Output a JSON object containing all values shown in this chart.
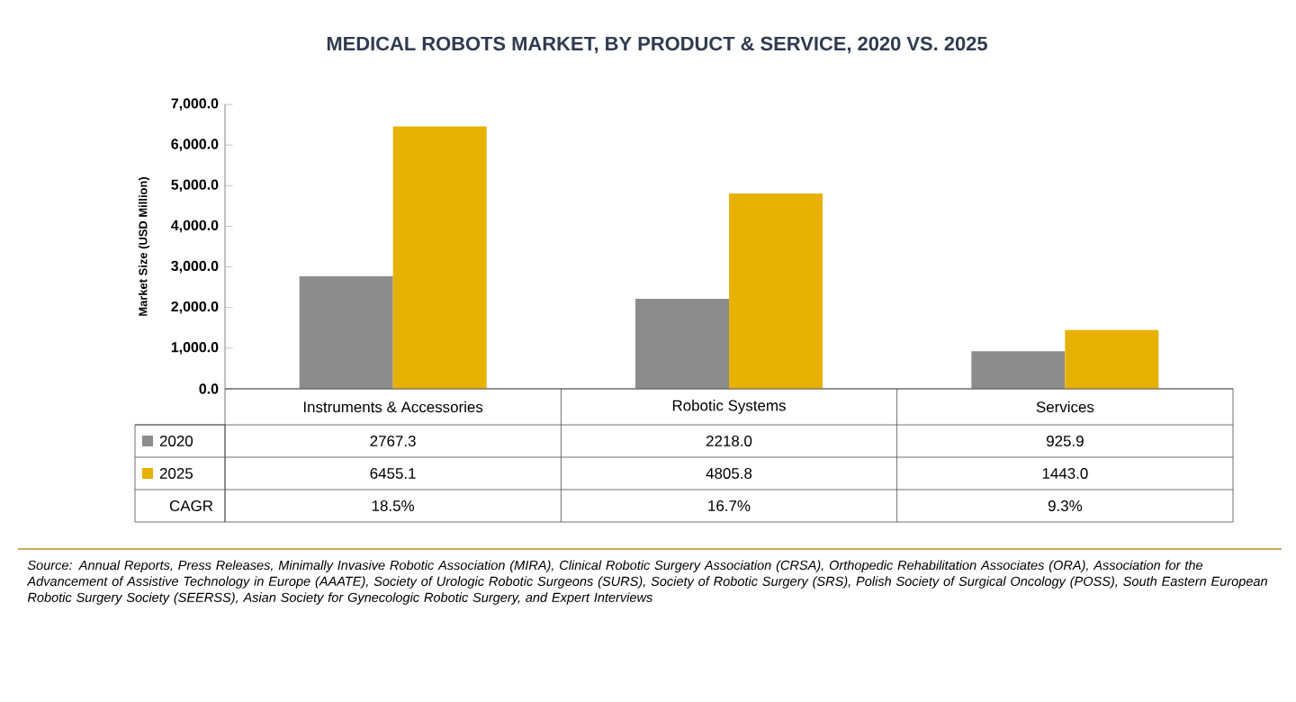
{
  "chart_data": {
    "type": "bar",
    "title": "MEDICAL ROBOTS MARKET, BY PRODUCT & SERVICE, 2020 VS. 2025",
    "ylabel": "Market Size (USD Million)",
    "categories": [
      "Instruments & Accessories",
      "Robotic Systems",
      "Services"
    ],
    "series": [
      {
        "name": "2020",
        "color": "#8c8c8c",
        "values": [
          2767.3,
          2218.0,
          925.9
        ],
        "value_labels": [
          "2767.3",
          "2218.0",
          "925.9"
        ]
      },
      {
        "name": "2025",
        "color": "#e8b000",
        "values": [
          6455.1,
          4805.8,
          1443.0
        ],
        "value_labels": [
          "6455.1",
          "4805.8",
          "1443.0"
        ]
      }
    ],
    "ylim": [
      0,
      7000
    ],
    "yticks": [
      {
        "value": 0,
        "label": "0.0"
      },
      {
        "value": 1000,
        "label": "1,000.0"
      },
      {
        "value": 2000,
        "label": "2,000.0"
      },
      {
        "value": 3000,
        "label": "3,000.0"
      },
      {
        "value": 4000,
        "label": "4,000.0"
      },
      {
        "value": 5000,
        "label": "5,000.0"
      },
      {
        "value": 6000,
        "label": "6,000.0"
      },
      {
        "value": 7000,
        "label": "7,000.0"
      }
    ],
    "grid": false,
    "legend": "bottom",
    "annotations": [
      "CAGR",
      "18.5%",
      "16.7%",
      "9.3%",
      "Source: Annual Reports, Press Releases, Minimally Invasive Robotic Association (MIRA), Clinical Robotic Surgery Association (CRSA), Orthopedic Rehabilitation Associates (ORA), Association for the Advancement of Assistive Technology in Europe (AAATE), Society of Urologic Robotic Surgeons (SURS), Society of Robotic Surgery (SRS), Polish Society of Surgical Oncology (POSS), South Eastern European Robotic Surgery Society (SEERSS), Asian Society for Gynecologic Robotic Surgery, and Expert Interviews"
    ]
  }
}
